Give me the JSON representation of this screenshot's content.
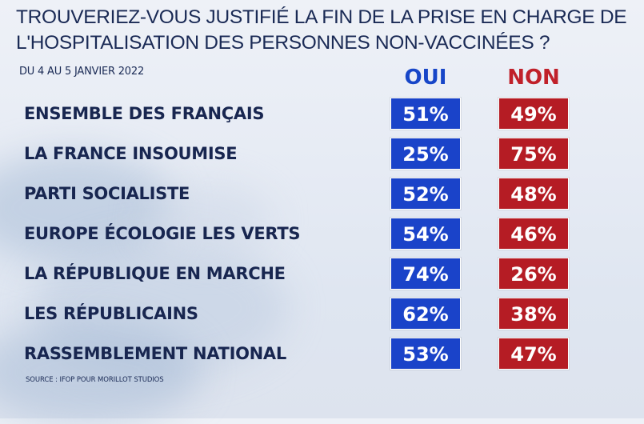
{
  "title": "TROUVERIEZ-VOUS JUSTIFIÉ LA FIN DE LA PRISE EN CHARGE DE L'HOSPITALISATION DES PERSONNES NON-VACCINÉES ?",
  "date": "DU 4 AU 5 JANVIER 2022",
  "source": "SOURCE : IFOP POUR MORILLOT STUDIOS",
  "colors": {
    "oui": "#1a43c9",
    "non": "#b51c24",
    "text": "#182650"
  },
  "chart_data": {
    "type": "table",
    "title": "TROUVERIEZ-VOUS JUSTIFIÉ LA FIN DE LA PRISE EN CHARGE DE L'HOSPITALISATION DES PERSONNES NON-VACCINÉES ?",
    "subtitle": "DU 4 AU 5 JANVIER 2022",
    "columns": [
      "OUI",
      "NON"
    ],
    "categories": [
      "ENSEMBLE DES FRANÇAIS",
      "LA FRANCE INSOUMISE",
      "PARTI SOCIALISTE",
      "EUROPE ÉCOLOGIE LES VERTS",
      "LA RÉPUBLIQUE EN MARCHE",
      "LES RÉPUBLICAINS",
      "RASSEMBLEMENT NATIONAL"
    ],
    "series": [
      {
        "name": "OUI",
        "values": [
          51,
          25,
          52,
          54,
          74,
          62,
          53
        ]
      },
      {
        "name": "NON",
        "values": [
          49,
          75,
          48,
          46,
          26,
          38,
          47
        ]
      }
    ],
    "unit": "%"
  }
}
